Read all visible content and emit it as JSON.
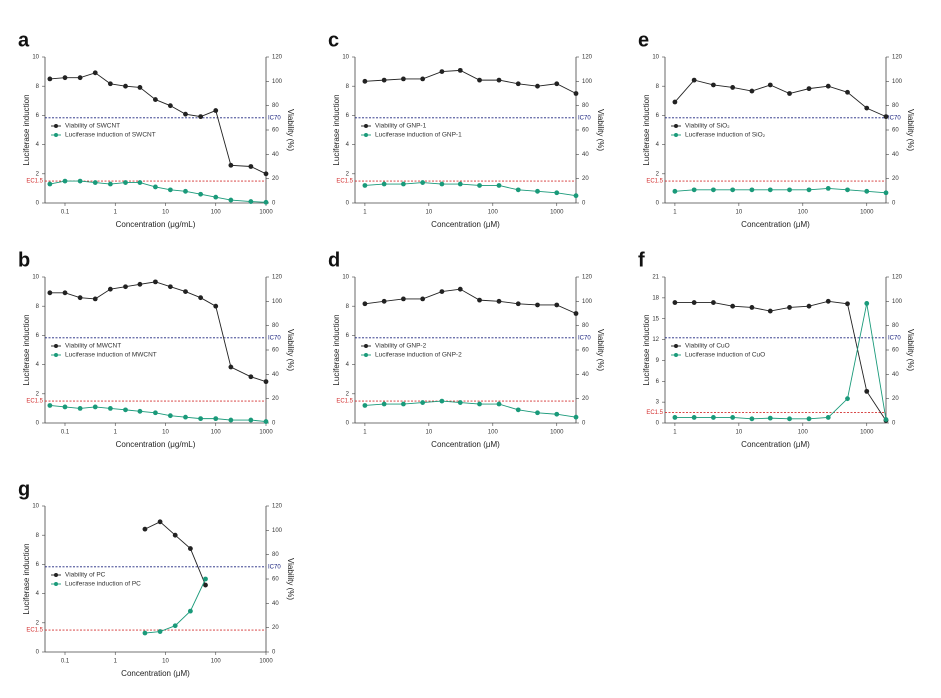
{
  "chart_data": [
    {
      "type": "line",
      "panel": "a",
      "xlabel": "Concentration (μg/mL)",
      "ylabel": "Luciferase induction",
      "y2label": "Viability (%)",
      "log_x": true,
      "xlim": [
        0.04,
        1000
      ],
      "xticks": [
        0.1,
        1,
        10,
        100,
        1000
      ],
      "ylim": [
        0,
        10
      ],
      "yticks": [
        0,
        2,
        4,
        6,
        8,
        10
      ],
      "y2lim": [
        0,
        120
      ],
      "y2ticks": [
        0,
        20,
        40,
        60,
        80,
        100,
        120
      ],
      "x": [
        0.05,
        0.1,
        0.2,
        0.4,
        0.8,
        1.6,
        3.1,
        6.3,
        12.5,
        25,
        50,
        100,
        200,
        500,
        1000
      ],
      "series": [
        {
          "name": "Viability of SWCNT",
          "color": "#222222",
          "axis": "y2",
          "values": [
            102,
            103,
            103,
            107,
            98,
            96,
            95,
            85,
            80,
            73,
            71,
            76,
            31,
            30,
            24
          ]
        },
        {
          "name": "Luciferase induction of SWCNT",
          "color": "#1a9a7a",
          "axis": "y",
          "values": [
            1.3,
            1.5,
            1.5,
            1.4,
            1.3,
            1.4,
            1.4,
            1.1,
            0.9,
            0.8,
            0.6,
            0.4,
            0.2,
            0.1,
            0.05
          ]
        }
      ],
      "reference_lines": [
        {
          "label": "IC70",
          "value": 70,
          "axis": "y2",
          "color": "#1a237e"
        },
        {
          "label": "EC1.5",
          "value": 1.5,
          "axis": "y",
          "color": "#d32f2f"
        }
      ]
    },
    {
      "type": "line",
      "panel": "b",
      "xlabel": "Concentration (μg/mL)",
      "ylabel": "Luciferase induction",
      "y2label": "Viability (%)",
      "log_x": true,
      "xlim": [
        0.04,
        1000
      ],
      "xticks": [
        0.1,
        1,
        10,
        100,
        1000
      ],
      "ylim": [
        0,
        10
      ],
      "yticks": [
        0,
        2,
        4,
        6,
        8,
        10
      ],
      "y2lim": [
        0,
        120
      ],
      "y2ticks": [
        0,
        20,
        40,
        60,
        80,
        100,
        120
      ],
      "x": [
        0.05,
        0.1,
        0.2,
        0.4,
        0.8,
        1.6,
        3.1,
        6.3,
        12.5,
        25,
        50,
        100,
        200,
        500,
        1000
      ],
      "series": [
        {
          "name": "Viability of MWCNT",
          "color": "#222222",
          "axis": "y2",
          "values": [
            107,
            107,
            103,
            102,
            110,
            112,
            114,
            116,
            112,
            108,
            103,
            96,
            46,
            38,
            34
          ]
        },
        {
          "name": "Luciferase induction of MWCNT",
          "color": "#1a9a7a",
          "axis": "y",
          "values": [
            1.2,
            1.1,
            1.0,
            1.1,
            1.0,
            0.9,
            0.8,
            0.7,
            0.5,
            0.4,
            0.3,
            0.3,
            0.2,
            0.2,
            0.1
          ]
        }
      ],
      "reference_lines": [
        {
          "label": "IC70",
          "value": 70,
          "axis": "y2",
          "color": "#1a237e"
        },
        {
          "label": "EC1.5",
          "value": 1.5,
          "axis": "y",
          "color": "#d32f2f"
        }
      ]
    },
    {
      "type": "line",
      "panel": "c",
      "xlabel": "Concentration (μM)",
      "ylabel": "Luciferase induction",
      "y2label": "Viability (%)",
      "log_x": true,
      "xlim": [
        0.7,
        2000
      ],
      "xticks": [
        1,
        10,
        100,
        1000
      ],
      "ylim": [
        0,
        10
      ],
      "yticks": [
        0,
        2,
        4,
        6,
        8,
        10
      ],
      "y2lim": [
        0,
        120
      ],
      "y2ticks": [
        0,
        20,
        40,
        60,
        80,
        100,
        120
      ],
      "x": [
        1,
        2,
        4,
        8,
        16,
        31,
        62,
        125,
        250,
        500,
        1000,
        2000
      ],
      "series": [
        {
          "name": "Viability of GNP-1",
          "color": "#222222",
          "axis": "y2",
          "values": [
            100,
            101,
            102,
            102,
            108,
            109,
            101,
            101,
            98,
            96,
            98,
            90
          ]
        },
        {
          "name": "Luciferase induction of GNP-1",
          "color": "#1a9a7a",
          "axis": "y",
          "values": [
            1.2,
            1.3,
            1.3,
            1.4,
            1.3,
            1.3,
            1.2,
            1.2,
            0.9,
            0.8,
            0.7,
            0.5
          ]
        }
      ],
      "reference_lines": [
        {
          "label": "IC70",
          "value": 70,
          "axis": "y2",
          "color": "#1a237e"
        },
        {
          "label": "EC1.5",
          "value": 1.5,
          "axis": "y",
          "color": "#d32f2f"
        }
      ]
    },
    {
      "type": "line",
      "panel": "d",
      "xlabel": "Concentration (μM)",
      "ylabel": "Luciferase induction",
      "y2label": "Viability (%)",
      "log_x": true,
      "xlim": [
        0.7,
        2000
      ],
      "xticks": [
        1,
        10,
        100,
        1000
      ],
      "ylim": [
        0,
        10
      ],
      "yticks": [
        0,
        2,
        4,
        6,
        8,
        10
      ],
      "y2lim": [
        0,
        120
      ],
      "y2ticks": [
        0,
        20,
        40,
        60,
        80,
        100,
        120
      ],
      "x": [
        1,
        2,
        4,
        8,
        16,
        31,
        62,
        125,
        250,
        500,
        1000,
        2000
      ],
      "series": [
        {
          "name": "Viability of GNP-2",
          "color": "#222222",
          "axis": "y2",
          "values": [
            98,
            100,
            102,
            102,
            108,
            110,
            101,
            100,
            98,
            97,
            97,
            90
          ]
        },
        {
          "name": "Luciferase induction of GNP-2",
          "color": "#1a9a7a",
          "axis": "y",
          "values": [
            1.2,
            1.3,
            1.3,
            1.4,
            1.5,
            1.4,
            1.3,
            1.3,
            0.9,
            0.7,
            0.6,
            0.4
          ]
        }
      ],
      "reference_lines": [
        {
          "label": "IC70",
          "value": 70,
          "axis": "y2",
          "color": "#1a237e"
        },
        {
          "label": "EC1.5",
          "value": 1.5,
          "axis": "y",
          "color": "#d32f2f"
        }
      ]
    },
    {
      "type": "line",
      "panel": "e",
      "xlabel": "Concentration (μM)",
      "ylabel": "Luciferase induction",
      "y2label": "Viability (%)",
      "log_x": true,
      "xlim": [
        0.7,
        2000
      ],
      "xticks": [
        1,
        10,
        100,
        1000
      ],
      "ylim": [
        0,
        10
      ],
      "yticks": [
        0,
        2,
        4,
        6,
        8,
        10
      ],
      "y2lim": [
        0,
        120
      ],
      "y2ticks": [
        0,
        20,
        40,
        60,
        80,
        100,
        120
      ],
      "x": [
        1,
        2,
        4,
        8,
        16,
        31,
        62,
        125,
        250,
        500,
        1000,
        2000
      ],
      "series": [
        {
          "name": "Viability of SiO₂",
          "color": "#222222",
          "axis": "y2",
          "values": [
            83,
            101,
            97,
            95,
            92,
            97,
            90,
            94,
            96,
            91,
            78,
            71
          ]
        },
        {
          "name": "Luciferase induction of SiO₂",
          "color": "#1a9a7a",
          "axis": "y",
          "values": [
            0.8,
            0.9,
            0.9,
            0.9,
            0.9,
            0.9,
            0.9,
            0.9,
            1.0,
            0.9,
            0.8,
            0.7
          ]
        }
      ],
      "reference_lines": [
        {
          "label": "IC70",
          "value": 70,
          "axis": "y2",
          "color": "#1a237e"
        },
        {
          "label": "EC1.5",
          "value": 1.5,
          "axis": "y",
          "color": "#d32f2f"
        }
      ]
    },
    {
      "type": "line",
      "panel": "f",
      "xlabel": "Concentration (μM)",
      "ylabel": "Luciferase induction",
      "y2label": "Viability (%)",
      "log_x": true,
      "xlim": [
        0.7,
        2000
      ],
      "xticks": [
        1,
        10,
        100,
        1000
      ],
      "ylim": [
        0,
        21
      ],
      "yticks": [
        0,
        3,
        6,
        9,
        12,
        15,
        18,
        21
      ],
      "y2lim": [
        0,
        120
      ],
      "y2ticks": [
        0,
        20,
        40,
        60,
        80,
        100,
        120
      ],
      "x": [
        1,
        2,
        4,
        8,
        16,
        31,
        62,
        125,
        250,
        500,
        1000,
        2000
      ],
      "series": [
        {
          "name": "Viability of CuO",
          "color": "#222222",
          "axis": "y2",
          "values": [
            99,
            99,
            99,
            96,
            95,
            92,
            95,
            96,
            100,
            98,
            26,
            2
          ]
        },
        {
          "name": "Luciferase induction of CuO",
          "color": "#1a9a7a",
          "axis": "y",
          "values": [
            0.8,
            0.8,
            0.8,
            0.8,
            0.6,
            0.7,
            0.6,
            0.6,
            0.8,
            3.5,
            17.2,
            0.5
          ]
        }
      ],
      "reference_lines": [
        {
          "label": "IC70",
          "value": 70,
          "axis": "y2",
          "color": "#1a237e"
        },
        {
          "label": "EC1.5",
          "value": 1.5,
          "axis": "y",
          "color": "#d32f2f"
        }
      ]
    },
    {
      "type": "line",
      "panel": "g",
      "xlabel": "Concentration (μM)",
      "ylabel": "Luciferase induction",
      "y2label": "Viability (%)",
      "log_x": true,
      "xlim": [
        0.04,
        1000
      ],
      "xticks": [
        0.1,
        1,
        10,
        100,
        1000
      ],
      "ylim": [
        0,
        10
      ],
      "yticks": [
        0,
        2,
        4,
        6,
        8,
        10
      ],
      "y2lim": [
        0,
        120
      ],
      "y2ticks": [
        0,
        20,
        40,
        60,
        80,
        100,
        120
      ],
      "x": [
        3.9,
        7.8,
        15.6,
        31.3,
        62.5
      ],
      "series": [
        {
          "name": "Viability of PC",
          "color": "#222222",
          "axis": "y2",
          "values": [
            101,
            107,
            96,
            85,
            55
          ]
        },
        {
          "name": "Luciferase induction of PC",
          "color": "#1a9a7a",
          "axis": "y",
          "values": [
            1.3,
            1.4,
            1.8,
            2.8,
            5.0
          ]
        }
      ],
      "reference_lines": [
        {
          "label": "IC70",
          "value": 70,
          "axis": "y2",
          "color": "#1a237e"
        },
        {
          "label": "EC1.5",
          "value": 1.5,
          "axis": "y",
          "color": "#d32f2f"
        }
      ]
    }
  ]
}
